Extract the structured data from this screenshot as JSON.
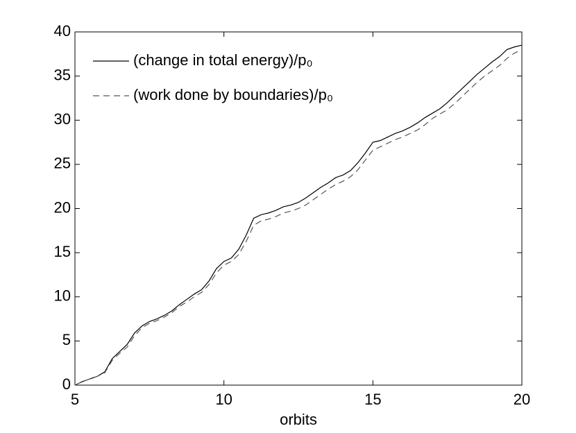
{
  "chart_data": {
    "type": "line",
    "x_label": "orbits",
    "x": [
      5,
      5.25,
      5.5,
      5.75,
      6,
      6.25,
      6.5,
      6.75,
      7,
      7.25,
      7.5,
      7.75,
      8,
      8.25,
      8.5,
      8.75,
      9,
      9.25,
      9.5,
      9.75,
      10,
      10.25,
      10.5,
      10.75,
      11,
      11.25,
      11.5,
      11.75,
      12,
      12.25,
      12.5,
      12.75,
      13,
      13.25,
      13.5,
      13.75,
      14,
      14.25,
      14.5,
      14.75,
      15,
      15.25,
      15.5,
      15.75,
      16,
      16.25,
      16.5,
      16.75,
      17,
      17.25,
      17.5,
      17.75,
      18,
      18.25,
      18.5,
      18.75,
      19,
      19.25,
      19.5,
      19.75,
      20
    ],
    "series": [
      {
        "name": "(change in total energy)/p₀",
        "color": "#000000",
        "dash": "none",
        "values": [
          0,
          0.4,
          0.7,
          1.0,
          1.5,
          3.0,
          3.8,
          4.6,
          5.9,
          6.7,
          7.2,
          7.5,
          7.9,
          8.4,
          9.1,
          9.7,
          10.3,
          10.8,
          11.8,
          13.2,
          14.0,
          14.4,
          15.4,
          17.0,
          18.9,
          19.3,
          19.5,
          19.8,
          20.2,
          20.4,
          20.7,
          21.2,
          21.8,
          22.4,
          22.9,
          23.5,
          23.8,
          24.3,
          25.2,
          26.3,
          27.5,
          27.7,
          28.1,
          28.5,
          28.8,
          29.2,
          29.7,
          30.3,
          30.8,
          31.3,
          32.0,
          32.8,
          33.6,
          34.4,
          35.2,
          35.9,
          36.6,
          37.2,
          38.0,
          38.3,
          38.5
        ]
      },
      {
        "name": "(work done by boundaries)/p₀",
        "color": "#555555",
        "dash": "9,6",
        "values": [
          0,
          0.4,
          0.7,
          1.0,
          1.4,
          2.8,
          3.6,
          4.3,
          5.6,
          6.5,
          7.0,
          7.3,
          7.7,
          8.2,
          8.9,
          9.4,
          10.0,
          10.5,
          11.4,
          12.7,
          13.6,
          14.0,
          14.8,
          16.3,
          18.1,
          18.6,
          18.8,
          19.1,
          19.5,
          19.7,
          20.0,
          20.4,
          21.0,
          21.6,
          22.2,
          22.7,
          23.1,
          23.6,
          24.4,
          25.5,
          26.6,
          27.0,
          27.4,
          27.8,
          28.1,
          28.5,
          28.9,
          29.5,
          30.2,
          30.7,
          31.2,
          31.9,
          32.7,
          33.5,
          34.3,
          35.0,
          35.6,
          36.2,
          37.0,
          37.6,
          38.0
        ]
      }
    ],
    "xlim": [
      5,
      20
    ],
    "xticks": [
      5,
      10,
      15,
      20
    ],
    "ylim": [
      0,
      40
    ],
    "yticks": [
      0,
      5,
      10,
      15,
      20,
      25,
      30,
      35,
      40
    ],
    "grid": false,
    "legend": "upper left"
  }
}
